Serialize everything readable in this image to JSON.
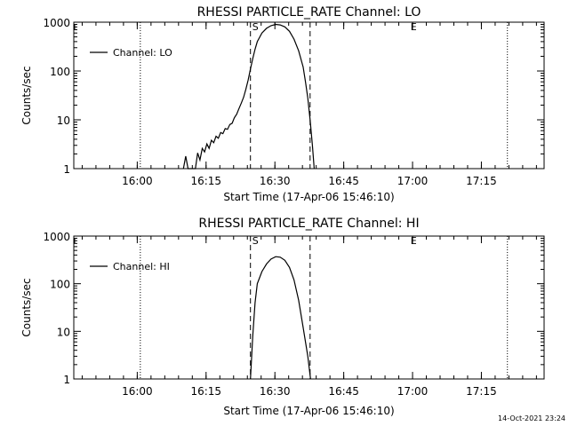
{
  "footer_timestamp": "14-Oct-2021 23:24",
  "chart_data": [
    {
      "type": "line",
      "title": "RHESSI PARTICLE_RATE Channel: LO",
      "xlabel": "Start Time (17-Apr-06 15:46:10)",
      "ylabel": "Counts/sec",
      "yscale": "log",
      "ylim": [
        1,
        1000
      ],
      "xlim_minutes": [
        0,
        102.5
      ],
      "x_ticks": [
        {
          "label": "16:00",
          "min": 13.83
        },
        {
          "label": "16:15",
          "min": 28.83
        },
        {
          "label": "16:30",
          "min": 43.83
        },
        {
          "label": "16:45",
          "min": 58.83
        },
        {
          "label": "17:00",
          "min": 73.83
        },
        {
          "label": "17:15",
          "min": 88.83
        }
      ],
      "y_ticks": [
        {
          "label": "1",
          "value": 1
        },
        {
          "label": "10",
          "value": 10
        },
        {
          "label": "100",
          "value": 100
        },
        {
          "label": "1000",
          "value": 1000
        }
      ],
      "legend": {
        "label": "Channel: LO",
        "placement": "top-left"
      },
      "markers": {
        "dotted_min": [
          14.5,
          94.5
        ],
        "dashed_min": [
          38.5,
          51.5
        ],
        "letters": [
          {
            "text": "S",
            "min": 38.5
          },
          {
            "text": "E",
            "min": 73.0
          }
        ]
      },
      "series": [
        {
          "name": "Channel: LO",
          "points": [
            [
              23.9,
              1.0
            ],
            [
              24.4,
              1.8
            ],
            [
              24.9,
              1.0
            ],
            [
              26.5,
              1.0
            ],
            [
              27.0,
              2.1
            ],
            [
              27.5,
              1.5
            ],
            [
              28.0,
              2.6
            ],
            [
              28.5,
              2.2
            ],
            [
              29.0,
              3.2
            ],
            [
              29.5,
              2.6
            ],
            [
              30.0,
              3.8
            ],
            [
              30.5,
              3.4
            ],
            [
              31.0,
              4.6
            ],
            [
              31.5,
              4.2
            ],
            [
              32.0,
              5.5
            ],
            [
              32.5,
              5.2
            ],
            [
              33.0,
              6.6
            ],
            [
              33.5,
              6.4
            ],
            [
              34.0,
              8.0
            ],
            [
              34.5,
              8.5
            ],
            [
              35.0,
              11
            ],
            [
              35.5,
              13
            ],
            [
              36.0,
              17
            ],
            [
              36.5,
              22
            ],
            [
              37.0,
              29
            ],
            [
              37.5,
              42
            ],
            [
              38.0,
              65
            ],
            [
              38.5,
              110
            ],
            [
              39.0,
              180
            ],
            [
              39.5,
              280
            ],
            [
              40.0,
              400
            ],
            [
              41.0,
              600
            ],
            [
              42.0,
              750
            ],
            [
              43.0,
              850
            ],
            [
              44.0,
              900
            ],
            [
              45.0,
              880
            ],
            [
              46.0,
              800
            ],
            [
              47.0,
              650
            ],
            [
              48.0,
              450
            ],
            [
              49.0,
              260
            ],
            [
              50.0,
              120
            ],
            [
              50.5,
              60
            ],
            [
              51.0,
              28
            ],
            [
              51.5,
              10
            ],
            [
              52.0,
              3
            ],
            [
              52.4,
              1.0
            ]
          ]
        }
      ]
    },
    {
      "type": "line",
      "title": "RHESSI PARTICLE_RATE Channel: HI",
      "xlabel": "Start Time (17-Apr-06 15:46:10)",
      "ylabel": "Counts/sec",
      "yscale": "log",
      "ylim": [
        1,
        1000
      ],
      "xlim_minutes": [
        0,
        102.5
      ],
      "x_ticks": [
        {
          "label": "16:00",
          "min": 13.83
        },
        {
          "label": "16:15",
          "min": 28.83
        },
        {
          "label": "16:30",
          "min": 43.83
        },
        {
          "label": "16:45",
          "min": 58.83
        },
        {
          "label": "17:00",
          "min": 73.83
        },
        {
          "label": "17:15",
          "min": 88.83
        }
      ],
      "y_ticks": [
        {
          "label": "1",
          "value": 1
        },
        {
          "label": "10",
          "value": 10
        },
        {
          "label": "100",
          "value": 100
        },
        {
          "label": "1000",
          "value": 1000
        }
      ],
      "legend": {
        "label": "Channel: HI",
        "placement": "top-left"
      },
      "markers": {
        "dotted_min": [
          14.5,
          94.5
        ],
        "dashed_min": [
          38.5,
          51.5
        ],
        "letters": [
          {
            "text": "S",
            "min": 38.5
          },
          {
            "text": "E",
            "min": 73.0
          }
        ]
      },
      "series": [
        {
          "name": "Channel: HI",
          "points": [
            [
              38.5,
              1.0
            ],
            [
              39.0,
              8
            ],
            [
              39.5,
              40
            ],
            [
              40.0,
              100
            ],
            [
              41.0,
              180
            ],
            [
              42.0,
              260
            ],
            [
              43.0,
              330
            ],
            [
              44.0,
              370
            ],
            [
              45.0,
              360
            ],
            [
              46.0,
              310
            ],
            [
              47.0,
              220
            ],
            [
              48.0,
              120
            ],
            [
              49.0,
              45
            ],
            [
              50.0,
              12
            ],
            [
              51.0,
              3
            ],
            [
              51.6,
              1.0
            ]
          ]
        }
      ]
    }
  ]
}
